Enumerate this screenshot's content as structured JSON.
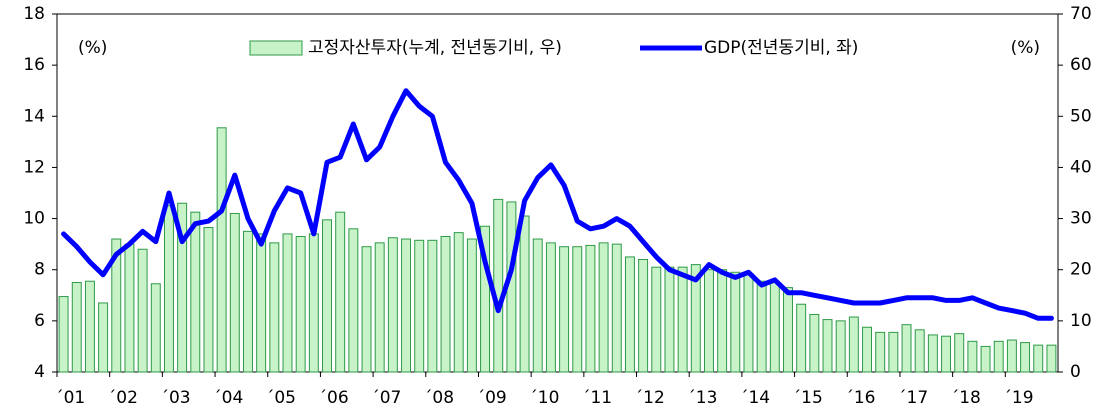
{
  "chart_data": {
    "type": "bar-line",
    "categories": [
      "´01",
      null,
      null,
      null,
      "´02",
      null,
      null,
      null,
      "´03",
      null,
      null,
      null,
      "´04",
      null,
      null,
      null,
      "´05",
      null,
      null,
      null,
      "´06",
      null,
      null,
      null,
      "´07",
      null,
      null,
      null,
      "´08",
      null,
      null,
      null,
      "´09",
      null,
      null,
      null,
      "´10",
      null,
      null,
      null,
      "´11",
      null,
      null,
      null,
      "´12",
      null,
      null,
      null,
      "´13",
      null,
      null,
      null,
      "´14",
      null,
      null,
      null,
      "´15",
      null,
      null,
      null,
      "´16",
      null,
      null,
      null,
      "´17",
      null,
      null,
      null,
      "´18",
      null,
      null,
      null,
      "´19",
      null,
      null,
      null
    ],
    "series": [
      {
        "name": "고정자산투자(누계, 전년동기비, 우)",
        "type": "bar",
        "axis": "y2",
        "color": "#c8f2c8",
        "stroke": "#2e9a48",
        "values": [
          14.75,
          17.5,
          17.75,
          13.5,
          26,
          25,
          24,
          17.25,
          32.5,
          33,
          31.25,
          28.25,
          47.75,
          31,
          27.5,
          27,
          25.25,
          27,
          26.5,
          27,
          29.75,
          31.25,
          28,
          24.5,
          25.25,
          26.25,
          26,
          25.75,
          25.75,
          26.5,
          27.25,
          26,
          28.5,
          33.75,
          33.25,
          30.5,
          26,
          25.25,
          24.5,
          24.5,
          24.75,
          25.25,
          25,
          22.5,
          22,
          20.5,
          20.5,
          20.5,
          21,
          20,
          20,
          19.5,
          19.25,
          17.75,
          17.5,
          16.5,
          13.25,
          11.25,
          10.25,
          10,
          10.75,
          8.75,
          7.75,
          7.75,
          9.25,
          8.25,
          7.25,
          7,
          7.5,
          6,
          5,
          6,
          6.25,
          5.75,
          5.25,
          5.25
        ]
      },
      {
        "name": "GDP(전년동기비, 좌)",
        "type": "line",
        "color": "#0000ff",
        "values": [
          9.4,
          8.9,
          8.3,
          7.8,
          8.6,
          9.0,
          9.5,
          9.1,
          11.0,
          9.1,
          9.8,
          9.9,
          10.3,
          11.7,
          10.0,
          9.0,
          10.3,
          11.2,
          11.0,
          9.4,
          12.2,
          12.4,
          13.7,
          12.3,
          12.8,
          14.0,
          15.0,
          14.4,
          14.0,
          12.2,
          11.5,
          10.6,
          8.3,
          6.4,
          8.0,
          10.7,
          11.6,
          12.1,
          11.3,
          9.9,
          9.6,
          9.7,
          10.0,
          9.7,
          9.1,
          8.5,
          8.0,
          7.8,
          7.6,
          8.2,
          7.9,
          7.7,
          7.9,
          7.4,
          7.6,
          7.1,
          7.1,
          7.0,
          6.9,
          6.8,
          6.7,
          6.7,
          6.7,
          6.8,
          6.9,
          6.9,
          6.9,
          6.8,
          6.8,
          6.9,
          6.7,
          6.5,
          6.4,
          6.3,
          6.1,
          6.1
        ]
      }
    ],
    "ylabel": "(%)",
    "y2label": "(%)",
    "ylim": [
      4,
      18
    ],
    "yticks": [
      4,
      6,
      8,
      10,
      12,
      14,
      16,
      18
    ],
    "y2lim": [
      0,
      70
    ],
    "y2ticks": [
      0,
      10,
      20,
      30,
      40,
      50,
      60,
      70
    ]
  }
}
